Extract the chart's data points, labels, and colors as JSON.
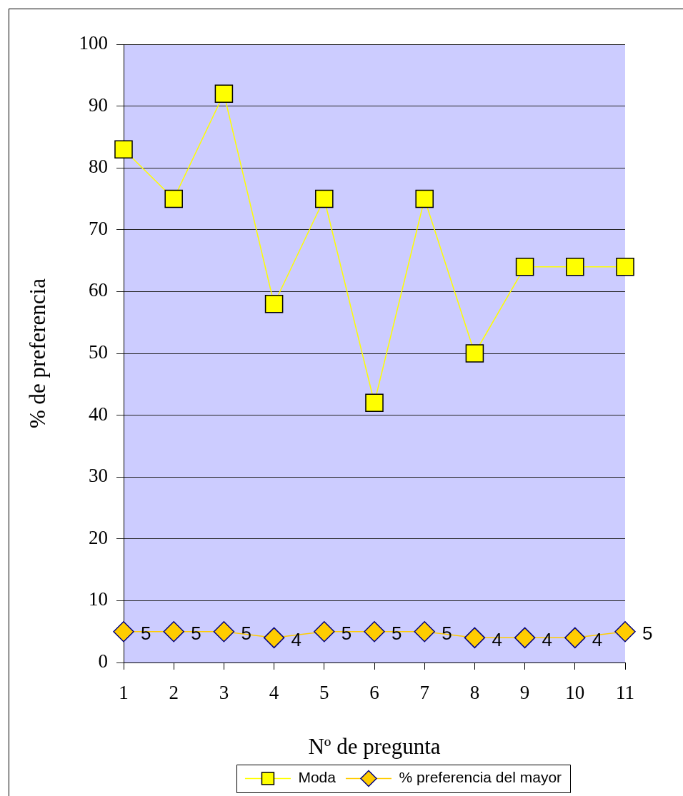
{
  "chart_data": {
    "type": "line",
    "xlabel": "Nº de pregunta",
    "ylabel": "% de preferencia",
    "categories": [
      "1",
      "2",
      "3",
      "4",
      "5",
      "6",
      "7",
      "8",
      "9",
      "10",
      "11"
    ],
    "series": [
      {
        "name": "Moda",
        "color": "#ffff00",
        "marker": "square",
        "values": [
          83,
          75,
          92,
          58,
          75,
          42,
          75,
          50,
          64,
          64,
          64
        ]
      },
      {
        "name": "% preferencia del mayor",
        "color": "#ffcc00",
        "marker": "diamond",
        "values": [
          5,
          5,
          5,
          4,
          5,
          5,
          5,
          4,
          4,
          4,
          5
        ],
        "value_labels": [
          "5",
          "5",
          "5",
          "4",
          "5",
          "5",
          "5",
          "4",
          "4",
          "4",
          "5"
        ]
      }
    ],
    "ylim": [
      0,
      100
    ],
    "yticks": [
      0,
      10,
      20,
      30,
      40,
      50,
      60,
      70,
      80,
      90,
      100
    ],
    "grid": "y",
    "legend": "bottom",
    "line_style": "solid"
  }
}
